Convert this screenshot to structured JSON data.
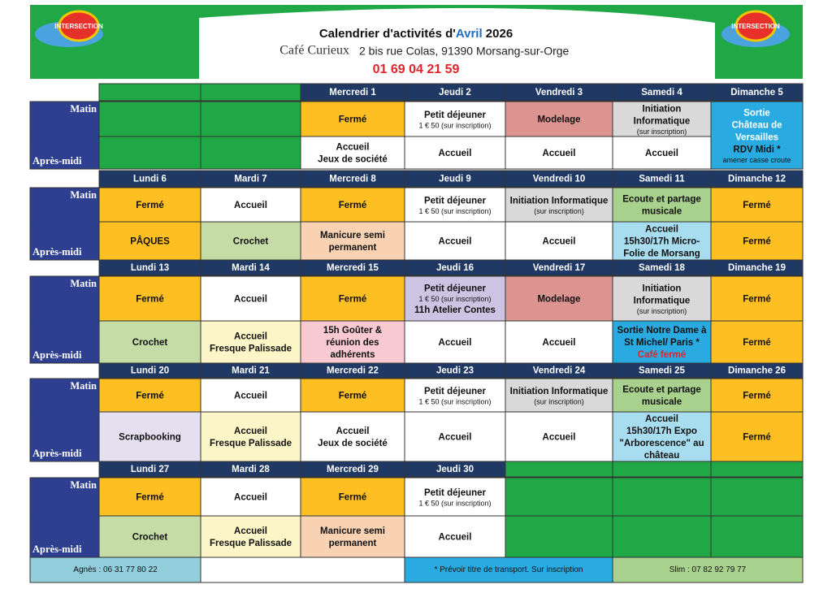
{
  "header": {
    "logo": "INTERSECTION",
    "title": [
      "Calendrier d'activités d'",
      "Avril",
      " 2026"
    ],
    "place": "Café Curieux",
    "address": "2 bis rue Colas, 91390 Morsang-sur-Orge",
    "phone": "01 69 04 21 59"
  },
  "labels": {
    "matin": "Matin",
    "apres": "Après-midi"
  },
  "weeks": [
    {
      "days": [
        null,
        null,
        "Mercredi 1",
        "Jeudi 2",
        "Vendredi 3",
        "Samedi 4",
        "Dimanche 5"
      ],
      "matin": [
        {
          "color": "#21a846",
          "lines": []
        },
        {
          "color": "#21a846",
          "lines": []
        },
        {
          "color": "#fdbf22",
          "lines": [
            "Fermé"
          ]
        },
        {
          "color": "#ffffff",
          "lines": [
            "Petit déjeuner",
            {
              "text": "1 € 50 (sur inscription)",
              "style": "small"
            }
          ]
        },
        {
          "color": "#dc9490",
          "lines": [
            "Modelage"
          ]
        },
        {
          "color": "#d9d9d9",
          "lines": [
            "Initiation",
            "Informatique",
            {
              "text": "(sur inscription)",
              "style": "small"
            }
          ]
        },
        {
          "color": "#29abe2",
          "span": 2,
          "lines": [
            {
              "text": "Sortie",
              "style": "white"
            },
            {
              "text": "Château de",
              "style": "white"
            },
            {
              "text": "Versailles",
              "style": "white"
            },
            "RDV Midi *",
            {
              "text": "amener casse croute",
              "style": "small"
            }
          ]
        }
      ],
      "apres": [
        {
          "color": "#21a846",
          "lines": []
        },
        {
          "color": "#21a846",
          "lines": []
        },
        {
          "color": "#ffffff",
          "lines": [
            "Accueil",
            "Jeux de société"
          ]
        },
        {
          "color": "#ffffff",
          "lines": [
            "Accueil"
          ]
        },
        {
          "color": "#ffffff",
          "lines": [
            "Accueil"
          ]
        },
        {
          "color": "#ffffff",
          "lines": [
            "Accueil"
          ]
        },
        null
      ]
    },
    {
      "days": [
        "Lundi 6",
        "Mardi 7",
        "Mercredi 8",
        "Jeudi 9",
        "Vendredi 10",
        "Samedi 11",
        "Dimanche 12"
      ],
      "matin": [
        {
          "color": "#fdbf22",
          "lines": [
            "Fermé"
          ]
        },
        {
          "color": "#ffffff",
          "lines": [
            "Accueil"
          ]
        },
        {
          "color": "#fdbf22",
          "lines": [
            "Fermé"
          ]
        },
        {
          "color": "#ffffff",
          "lines": [
            "Petit déjeuner",
            {
              "text": "1 € 50 (sur inscription)",
              "style": "small"
            }
          ]
        },
        {
          "color": "#d9d9d9",
          "lines": [
            "Initiation Informatique",
            {
              "text": "(sur inscription)",
              "style": "small"
            }
          ]
        },
        {
          "color": "#a9d18e",
          "lines": [
            "Ecoute et partage",
            "musicale"
          ]
        },
        {
          "color": "#fdbf22",
          "lines": [
            "Fermé"
          ]
        }
      ],
      "apres": [
        {
          "color": "#fdbf22",
          "lines": [
            "PÂQUES"
          ]
        },
        {
          "color": "#c5dca6",
          "lines": [
            "Crochet"
          ]
        },
        {
          "color": "#f8d2b2",
          "lines": [
            "Manicure semi",
            "permanent"
          ]
        },
        {
          "color": "#ffffff",
          "lines": [
            "Accueil"
          ]
        },
        {
          "color": "#ffffff",
          "lines": [
            "Accueil"
          ]
        },
        {
          "color": "#a8dcef",
          "lines": [
            "Accueil",
            "15h30/17h Micro-",
            "Folie de Morsang"
          ]
        },
        {
          "color": "#fdbf22",
          "lines": [
            "Fermé"
          ]
        }
      ]
    },
    {
      "days": [
        "Lundi 13",
        "Mardi 14",
        "Mercredi 15",
        "Jeudi 16",
        "Vendredi 17",
        "Samedi 18",
        "Dimanche 19"
      ],
      "matin": [
        {
          "color": "#fdbf22",
          "lines": [
            "Fermé"
          ]
        },
        {
          "color": "#ffffff",
          "lines": [
            "Accueil"
          ]
        },
        {
          "color": "#fdbf22",
          "lines": [
            "Fermé"
          ]
        },
        {
          "color": "#cdc4e3",
          "lines": [
            "Petit déjeuner",
            {
              "text": "1 € 50 (sur inscription)",
              "style": "small"
            },
            "11h Atelier Contes"
          ]
        },
        {
          "color": "#dc9490",
          "lines": [
            "Modelage"
          ]
        },
        {
          "color": "#d9d9d9",
          "lines": [
            "Initiation",
            "Informatique",
            {
              "text": "(sur inscription)",
              "style": "small"
            }
          ]
        },
        {
          "color": "#fdbf22",
          "lines": [
            "Fermé"
          ]
        }
      ],
      "apres": [
        {
          "color": "#c5dca6",
          "lines": [
            "Crochet"
          ]
        },
        {
          "color": "#fcf5c7",
          "lines": [
            "Accueil",
            "Fresque Palissade"
          ]
        },
        {
          "color": "#f8c9d0",
          "lines": [
            "15h  Goûter &",
            "réunion des",
            "adhérents"
          ]
        },
        {
          "color": "#ffffff",
          "lines": [
            "Accueil"
          ]
        },
        {
          "color": "#ffffff",
          "lines": [
            "Accueil"
          ]
        },
        {
          "color": "#29abe2",
          "lines": [
            "Sortie Notre Dame à",
            "St Michel/ Paris *",
            {
              "text": "Café fermé",
              "style": "red"
            }
          ]
        },
        {
          "color": "#fdbf22",
          "lines": [
            "Fermé"
          ]
        }
      ]
    },
    {
      "days": [
        "Lundi 20",
        "Mardi 21",
        "Mercredi 22",
        "Jeudi 23",
        "Vendredi 24",
        "Samedi 25",
        "Dimanche 26"
      ],
      "matin": [
        {
          "color": "#fdbf22",
          "lines": [
            "Fermé"
          ]
        },
        {
          "color": "#ffffff",
          "lines": [
            "Accueil"
          ]
        },
        {
          "color": "#fdbf22",
          "lines": [
            "Fermé"
          ]
        },
        {
          "color": "#ffffff",
          "lines": [
            "Petit déjeuner",
            {
              "text": "1 € 50 (sur inscription)",
              "style": "small"
            }
          ]
        },
        {
          "color": "#d9d9d9",
          "lines": [
            "Initiation Informatique",
            {
              "text": "(sur inscription)",
              "style": "small"
            }
          ]
        },
        {
          "color": "#a9d18e",
          "lines": [
            "Ecoute et partage",
            "musicale"
          ]
        },
        {
          "color": "#fdbf22",
          "lines": [
            "Fermé"
          ]
        }
      ],
      "apres": [
        {
          "color": "#e4e0f0",
          "lines": [
            "Scrapbooking"
          ]
        },
        {
          "color": "#fcf5c7",
          "lines": [
            "Accueil",
            "Fresque Palissade"
          ]
        },
        {
          "color": "#ffffff",
          "lines": [
            "Accueil",
            "Jeux de société"
          ]
        },
        {
          "color": "#ffffff",
          "lines": [
            "Accueil"
          ]
        },
        {
          "color": "#ffffff",
          "lines": [
            "Accueil"
          ]
        },
        {
          "color": "#a8dcef",
          "lines": [
            "Accueil",
            "15h30/17h Expo",
            "\"Arborescence\" au",
            "château"
          ]
        },
        {
          "color": "#fdbf22",
          "lines": [
            "Fermé"
          ]
        }
      ]
    },
    {
      "days": [
        "Lundi 27",
        "Mardi 28",
        "Mercredi 29",
        "Jeudi 30",
        null,
        null,
        null
      ],
      "matin": [
        {
          "color": "#fdbf22",
          "lines": [
            "Fermé"
          ]
        },
        {
          "color": "#ffffff",
          "lines": [
            "Accueil"
          ]
        },
        {
          "color": "#fdbf22",
          "lines": [
            "Fermé"
          ]
        },
        {
          "color": "#ffffff",
          "lines": [
            "Petit déjeuner",
            {
              "text": "1 € 50 (sur inscription)",
              "style": "small"
            }
          ]
        },
        {
          "color": "#21a846",
          "lines": []
        },
        {
          "color": "#21a846",
          "lines": []
        },
        {
          "color": "#21a846",
          "lines": []
        }
      ],
      "apres": [
        {
          "color": "#c5dca6",
          "lines": [
            "Crochet"
          ]
        },
        {
          "color": "#fcf5c7",
          "lines": [
            "Accueil",
            "Fresque Palissade"
          ]
        },
        {
          "color": "#f8d2b2",
          "lines": [
            "Manicure semi",
            "permanent"
          ]
        },
        {
          "color": "#ffffff",
          "lines": [
            "Accueil"
          ]
        },
        {
          "color": "#21a846",
          "lines": []
        },
        {
          "color": "#21a846",
          "lines": []
        },
        {
          "color": "#21a846",
          "lines": []
        }
      ]
    }
  ],
  "footer": [
    {
      "text": "Agnès : 06 31 77 80 22",
      "color": "#92cddc"
    },
    {
      "text": "* Prévoir titre de transport. Sur inscription",
      "color": "#29abe2"
    },
    {
      "text": "Slim : 07 82 92 79 77",
      "color": "#a9d18e"
    }
  ]
}
